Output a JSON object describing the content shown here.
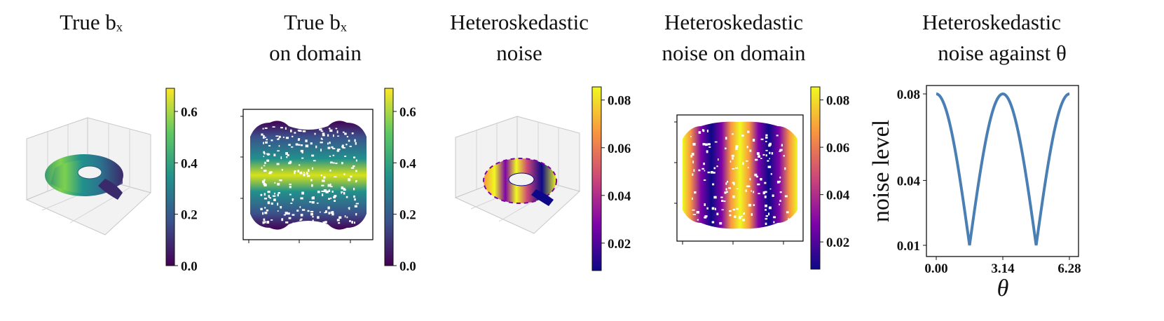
{
  "panels": [
    {
      "title_lines": [
        "True bₓ",
        ""
      ]
    },
    {
      "title_lines": [
        "True bₓ",
        "on domain"
      ]
    },
    {
      "title_lines": [
        "Heteroskedastic",
        "noise"
      ]
    },
    {
      "title_lines": [
        "Heteroskedastic",
        "noise on domain"
      ]
    },
    {
      "title_lines": [
        "Heteroskedastic",
        "noise against θ"
      ]
    }
  ],
  "colorbars": [
    {
      "cmap": "viridis",
      "ticks": [
        "0.0",
        "0.2",
        "0.4",
        "0.6"
      ],
      "range": [
        0.0,
        0.69
      ]
    },
    {
      "cmap": "viridis",
      "ticks": [
        "0.0",
        "0.2",
        "0.4",
        "0.6"
      ],
      "range": [
        0.0,
        0.69
      ]
    },
    {
      "cmap": "plasma",
      "ticks": [
        "0.02",
        "0.04",
        "0.06",
        "0.08"
      ],
      "range": [
        0.0085,
        0.0855
      ]
    },
    {
      "cmap": "plasma",
      "ticks": [
        "0.02",
        "0.04",
        "0.06",
        "0.08"
      ],
      "range": [
        0.0085,
        0.0855
      ]
    }
  ],
  "chart_data": {
    "type": "line",
    "title": "Heteroskedastic noise against θ",
    "xlabel": "θ",
    "ylabel": "noise level",
    "xticks": [
      "0.00",
      "3.14",
      "6.28"
    ],
    "yticks": [
      "0.01",
      "0.04",
      "0.08"
    ],
    "xlim": [
      0,
      6.28
    ],
    "ylim": [
      0.01,
      0.08
    ],
    "x": [
      0.0,
      0.393,
      0.785,
      1.178,
      1.571,
      1.963,
      2.356,
      2.749,
      3.142,
      3.534,
      3.927,
      4.32,
      4.712,
      5.105,
      5.498,
      5.89,
      6.283
    ],
    "y": [
      0.08,
      0.0749,
      0.0625,
      0.0425,
      0.01,
      0.0425,
      0.0625,
      0.0749,
      0.08,
      0.0749,
      0.0625,
      0.0425,
      0.01,
      0.0425,
      0.0625,
      0.0749,
      0.08
    ],
    "line_color": "#4a7fb5"
  }
}
